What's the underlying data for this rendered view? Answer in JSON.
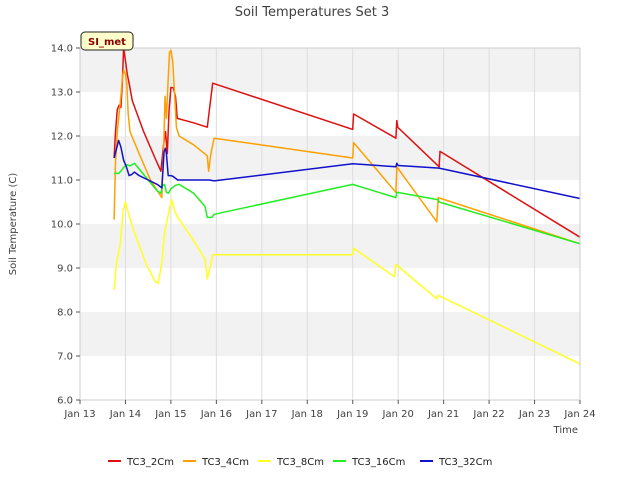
{
  "chart_data": {
    "type": "line",
    "title": "Soil Temperatures Set 3",
    "xlabel": "Time",
    "ylabel": "Soil Temperature (C)",
    "badge": "SI_met",
    "xlim": [
      13,
      24
    ],
    "ylim": [
      6.0,
      14.0
    ],
    "x_ticks": [
      13,
      14,
      15,
      16,
      17,
      18,
      19,
      20,
      21,
      22,
      23,
      24
    ],
    "x_tick_labels": [
      "Jan 13",
      "Jan 14",
      "Jan 15",
      "Jan 16",
      "Jan 17",
      "Jan 18",
      "Jan 19",
      "Jan 20",
      "Jan 21",
      "Jan 22",
      "Jan 23",
      "Jan 24"
    ],
    "y_ticks": [
      6.0,
      7.0,
      8.0,
      9.0,
      10.0,
      11.0,
      12.0,
      13.0,
      14.0
    ],
    "y_tick_labels": [
      "6.0",
      "7.0",
      "8.0",
      "9.0",
      "10.0",
      "11.0",
      "12.0",
      "13.0",
      "14.0"
    ],
    "background_bands": [
      [
        7.0,
        8.0
      ],
      [
        9.0,
        10.0
      ],
      [
        11.0,
        12.0
      ],
      [
        13.0,
        14.0
      ]
    ],
    "series": [
      {
        "name": "TC3_2Cm",
        "color": "#dd1111",
        "points": [
          [
            13.75,
            11.5
          ],
          [
            13.78,
            12.1
          ],
          [
            13.82,
            12.6
          ],
          [
            13.86,
            12.7
          ],
          [
            13.9,
            12.65
          ],
          [
            13.93,
            13.2
          ],
          [
            13.96,
            14.0
          ],
          [
            14.0,
            13.7
          ],
          [
            14.04,
            13.4
          ],
          [
            14.08,
            13.2
          ],
          [
            14.15,
            12.8
          ],
          [
            14.4,
            12.1
          ],
          [
            14.65,
            11.5
          ],
          [
            14.78,
            11.2
          ],
          [
            14.84,
            11.8
          ],
          [
            14.88,
            12.1
          ],
          [
            14.92,
            11.6
          ],
          [
            14.96,
            12.6
          ],
          [
            15.0,
            13.1
          ],
          [
            15.05,
            13.1
          ],
          [
            15.1,
            12.9
          ],
          [
            15.14,
            12.4
          ],
          [
            15.5,
            12.3
          ],
          [
            15.8,
            12.2
          ],
          [
            15.87,
            12.8
          ],
          [
            15.92,
            13.2
          ],
          [
            19.0,
            12.15
          ],
          [
            19.02,
            12.5
          ],
          [
            19.95,
            11.95
          ],
          [
            19.97,
            12.35
          ],
          [
            19.99,
            12.2
          ],
          [
            20.9,
            11.3
          ],
          [
            20.92,
            11.65
          ],
          [
            24.0,
            9.7
          ]
        ]
      },
      {
        "name": "TC3_4Cm",
        "color": "#ffa000",
        "points": [
          [
            13.75,
            10.1
          ],
          [
            13.78,
            11.4
          ],
          [
            13.82,
            12.1
          ],
          [
            13.86,
            12.5
          ],
          [
            13.9,
            12.9
          ],
          [
            13.93,
            13.3
          ],
          [
            13.96,
            13.5
          ],
          [
            14.0,
            13.4
          ],
          [
            14.03,
            13.2
          ],
          [
            14.06,
            12.5
          ],
          [
            14.1,
            12.1
          ],
          [
            14.3,
            11.6
          ],
          [
            14.55,
            11.0
          ],
          [
            14.8,
            10.6
          ],
          [
            14.84,
            11.6
          ],
          [
            14.87,
            12.9
          ],
          [
            14.9,
            12.4
          ],
          [
            14.94,
            13.3
          ],
          [
            14.97,
            13.9
          ],
          [
            15.0,
            13.95
          ],
          [
            15.04,
            13.7
          ],
          [
            15.08,
            13.0
          ],
          [
            15.12,
            12.2
          ],
          [
            15.18,
            12.0
          ],
          [
            15.5,
            11.8
          ],
          [
            15.8,
            11.55
          ],
          [
            15.83,
            11.2
          ],
          [
            15.88,
            11.6
          ],
          [
            15.95,
            11.95
          ],
          [
            19.0,
            11.5
          ],
          [
            19.02,
            11.85
          ],
          [
            19.95,
            10.72
          ],
          [
            19.97,
            11.3
          ],
          [
            20.85,
            10.05
          ],
          [
            20.88,
            10.6
          ],
          [
            24.0,
            9.55
          ]
        ]
      },
      {
        "name": "TC3_8Cm",
        "color": "#ffff22",
        "points": [
          [
            13.75,
            8.5
          ],
          [
            13.8,
            9.1
          ],
          [
            13.88,
            9.5
          ],
          [
            13.95,
            10.3
          ],
          [
            14.0,
            10.5
          ],
          [
            14.05,
            10.3
          ],
          [
            14.2,
            9.8
          ],
          [
            14.45,
            9.1
          ],
          [
            14.65,
            8.7
          ],
          [
            14.72,
            8.65
          ],
          [
            14.8,
            9.1
          ],
          [
            14.86,
            9.8
          ],
          [
            14.92,
            10.1
          ],
          [
            14.98,
            10.4
          ],
          [
            15.02,
            10.55
          ],
          [
            15.08,
            10.3
          ],
          [
            15.15,
            10.15
          ],
          [
            15.45,
            9.7
          ],
          [
            15.75,
            9.2
          ],
          [
            15.8,
            8.75
          ],
          [
            15.85,
            8.95
          ],
          [
            15.92,
            9.3
          ],
          [
            19.0,
            9.3
          ],
          [
            19.02,
            9.45
          ],
          [
            19.92,
            8.8
          ],
          [
            19.95,
            9.08
          ],
          [
            20.85,
            8.3
          ],
          [
            20.88,
            8.38
          ],
          [
            24.0,
            6.82
          ]
        ]
      },
      {
        "name": "TC3_16Cm",
        "color": "#22ee22",
        "points": [
          [
            13.75,
            11.15
          ],
          [
            13.85,
            11.15
          ],
          [
            13.9,
            11.2
          ],
          [
            13.97,
            11.3
          ],
          [
            14.03,
            11.35
          ],
          [
            14.1,
            11.32
          ],
          [
            14.2,
            11.38
          ],
          [
            14.3,
            11.25
          ],
          [
            14.5,
            11.0
          ],
          [
            14.7,
            10.75
          ],
          [
            14.78,
            10.7
          ],
          [
            14.82,
            10.88
          ],
          [
            14.86,
            10.9
          ],
          [
            14.9,
            10.72
          ],
          [
            14.95,
            10.7
          ],
          [
            15.0,
            10.8
          ],
          [
            15.1,
            10.88
          ],
          [
            15.18,
            10.9
          ],
          [
            15.5,
            10.7
          ],
          [
            15.75,
            10.4
          ],
          [
            15.8,
            10.15
          ],
          [
            15.9,
            10.15
          ],
          [
            15.95,
            10.22
          ],
          [
            19.0,
            10.9
          ],
          [
            19.95,
            10.6
          ],
          [
            19.97,
            10.72
          ],
          [
            20.88,
            10.55
          ],
          [
            20.9,
            10.5
          ],
          [
            24.0,
            9.55
          ]
        ]
      },
      {
        "name": "TC3_32Cm",
        "color": "#1111cc",
        "points": [
          [
            13.75,
            11.5
          ],
          [
            13.8,
            11.7
          ],
          [
            13.85,
            11.9
          ],
          [
            13.9,
            11.75
          ],
          [
            13.96,
            11.45
          ],
          [
            14.02,
            11.3
          ],
          [
            14.08,
            11.1
          ],
          [
            14.13,
            11.12
          ],
          [
            14.2,
            11.18
          ],
          [
            14.3,
            11.1
          ],
          [
            14.5,
            11.0
          ],
          [
            14.7,
            10.9
          ],
          [
            14.8,
            10.82
          ],
          [
            14.85,
            11.65
          ],
          [
            14.88,
            11.72
          ],
          [
            14.9,
            11.6
          ],
          [
            14.94,
            11.1
          ],
          [
            15.0,
            11.1
          ],
          [
            15.05,
            11.08
          ],
          [
            15.15,
            11.0
          ],
          [
            15.5,
            11.0
          ],
          [
            15.85,
            11.0
          ],
          [
            15.95,
            10.98
          ],
          [
            19.0,
            11.37
          ],
          [
            19.95,
            11.3
          ],
          [
            19.97,
            11.38
          ],
          [
            20.0,
            11.33
          ],
          [
            20.9,
            11.27
          ],
          [
            24.0,
            10.58
          ]
        ]
      }
    ]
  }
}
